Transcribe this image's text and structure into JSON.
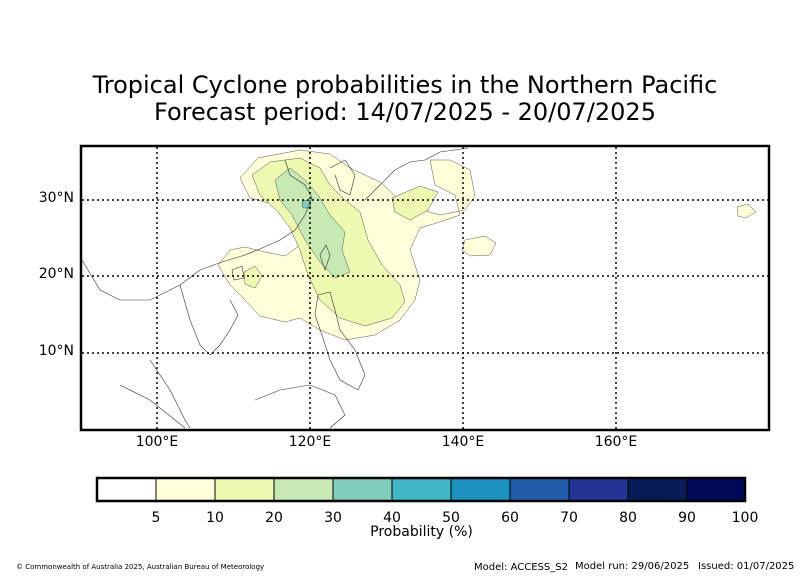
{
  "title": {
    "line1": "Tropical Cyclone probabilities in the Northern Pacific",
    "line2": "Forecast period: 14/07/2025 - 20/07/2025"
  },
  "map": {
    "lat_labels": [
      "30°N",
      "20°N",
      "10°N"
    ],
    "lon_labels": [
      "100°E",
      "120°E",
      "140°E",
      "160°E"
    ],
    "lon_range_deg_e": [
      90,
      180
    ],
    "lat_range_deg_n": [
      0,
      37
    ],
    "gridlines": "dotted"
  },
  "colorbar": {
    "label": "Probability (%)",
    "ticks": [
      "5",
      "10",
      "20",
      "30",
      "40",
      "50",
      "60",
      "70",
      "80",
      "90",
      "100"
    ],
    "colors": [
      "#ffffff",
      "#ffffd9",
      "#edf8b1",
      "#c7e9b4",
      "#7fcdbb",
      "#41b6c4",
      "#1d91c0",
      "#225ea8",
      "#253494",
      "#081d58",
      "#000a58"
    ]
  },
  "footer": {
    "copyright": "© Commonwealth of Australia 2025, Australian Bureau of Meteorology",
    "model": "Model: ACCESS_S2",
    "model_run": "Model run: 29/06/2025",
    "issued": "Issued: 01/07/2025"
  }
}
